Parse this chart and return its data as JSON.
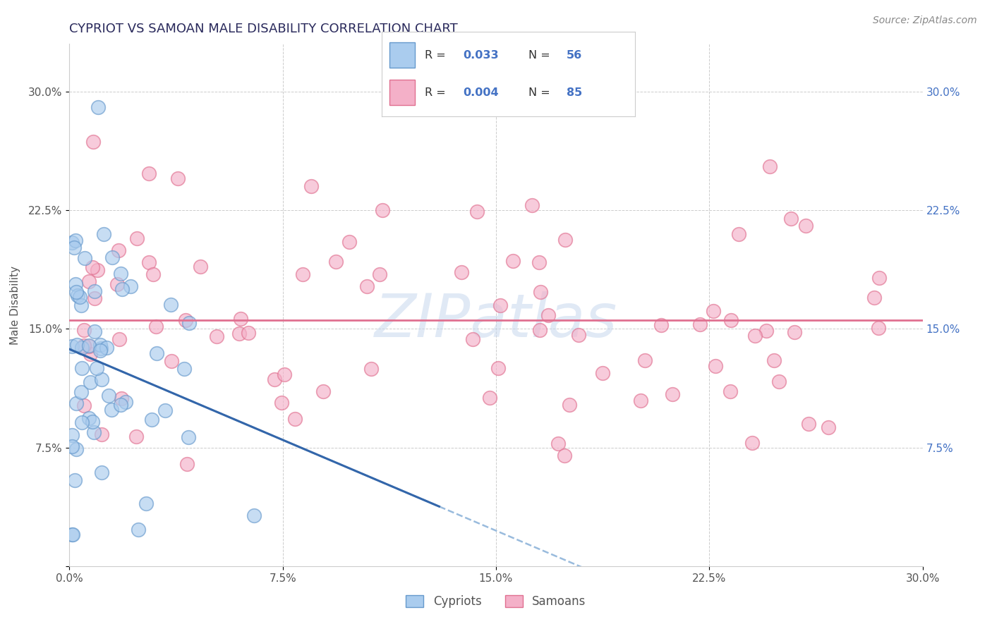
{
  "title": "CYPRIOT VS SAMOAN MALE DISABILITY CORRELATION CHART",
  "source": "Source: ZipAtlas.com",
  "ylabel": "Male Disability",
  "xlim": [
    0.0,
    0.3
  ],
  "ylim": [
    0.0,
    0.33
  ],
  "xticks": [
    0.0,
    0.075,
    0.15,
    0.225,
    0.3
  ],
  "xtick_labels": [
    "0.0%",
    "7.5%",
    "15.0%",
    "22.5%",
    "30.0%"
  ],
  "yticks": [
    0.0,
    0.075,
    0.15,
    0.225,
    0.3
  ],
  "ytick_labels": [
    "",
    "7.5%",
    "15.0%",
    "22.5%",
    "30.0%"
  ],
  "grid_color": "#cccccc",
  "background_color": "#ffffff",
  "cypriot_color": "#aaccee",
  "samoan_color": "#f4b0c8",
  "cypriot_edge": "#6699cc",
  "samoan_edge": "#e07090",
  "cypriot_R": 0.033,
  "cypriot_N": 56,
  "samoan_R": 0.004,
  "samoan_N": 85,
  "trend_blue_solid_color": "#3366aa",
  "trend_blue_dash_color": "#99bbdd",
  "trend_pink_color": "#e07090",
  "watermark": "ZIPatlas",
  "legend_value_color": "#4472c4",
  "legend_label_color": "#333333"
}
